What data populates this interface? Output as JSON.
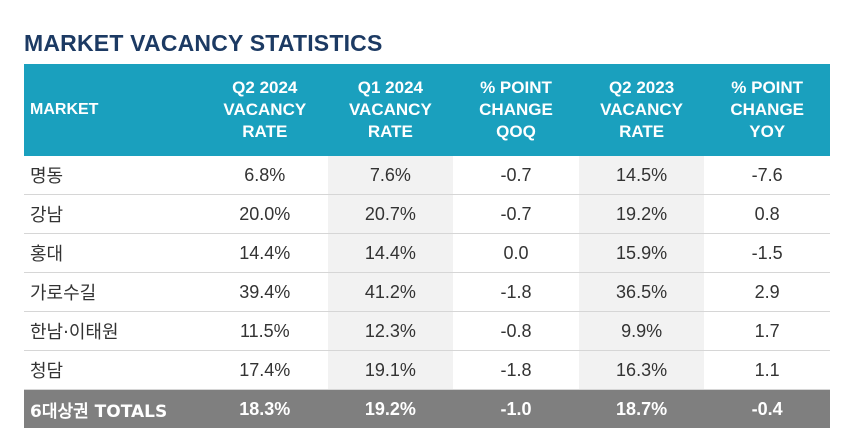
{
  "title": "MARKET VACANCY STATISTICS",
  "headers": [
    [
      "MARKET"
    ],
    [
      "Q2 2024",
      "VACANCY",
      "RATE"
    ],
    [
      "Q1 2024",
      "VACANCY",
      "RATE"
    ],
    [
      "% POINT",
      "CHANGE",
      "QOQ"
    ],
    [
      "Q2 2023",
      "VACANCY",
      "RATE"
    ],
    [
      "% POINT",
      "CHANGE",
      "YOY"
    ]
  ],
  "rows": [
    [
      "명동",
      "6.8%",
      "7.6%",
      "-0.7",
      "14.5%",
      "-7.6"
    ],
    [
      "강남",
      "20.0%",
      "20.7%",
      "-0.7",
      "19.2%",
      "0.8"
    ],
    [
      "홍대",
      "14.4%",
      "14.4%",
      "0.0",
      "15.9%",
      "-1.5"
    ],
    [
      "가로수길",
      "39.4%",
      "41.2%",
      "-1.8",
      "36.5%",
      "2.9"
    ],
    [
      "한남·이태원",
      "11.5%",
      "12.3%",
      "-0.8",
      "9.9%",
      "1.7"
    ],
    [
      "청담",
      "17.4%",
      "19.1%",
      "-1.8",
      "16.3%",
      "1.1"
    ]
  ],
  "totals": [
    "6대상권 TOTALS",
    "18.3%",
    "19.2%",
    "-1.0",
    "18.7%",
    "-0.4"
  ],
  "colors": {
    "title": "#1c3a63",
    "header_bg": "#1aa0be",
    "shaded_column_bg": "#f2f2f2",
    "totals_bg": "#7f7f7f"
  }
}
